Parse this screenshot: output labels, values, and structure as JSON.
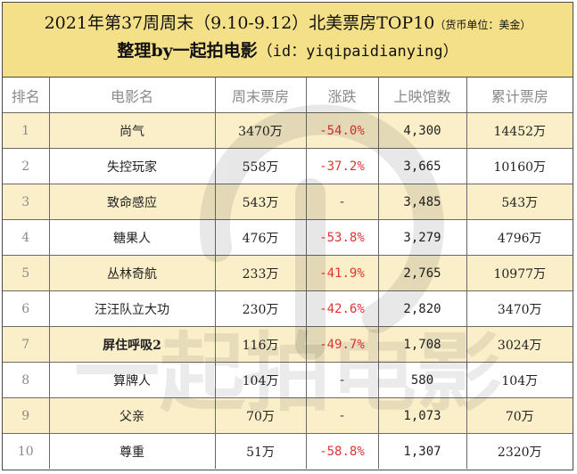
{
  "header": {
    "title": "2021年第37周周末（9.10-9.12）北美票房TOP10",
    "unit": "（货币单位：美金）",
    "sub_prefix": "整理by一起拍电影",
    "sub_id": "（id：yiqipaidianying）"
  },
  "columns": [
    "排名",
    "电影名",
    "周末票房",
    "涨跌",
    "上映馆数",
    "累计票房"
  ],
  "rows": [
    {
      "rank": "1",
      "title": "尚气",
      "weekend": "3470万",
      "change": "-54.0%",
      "screens": "4,300",
      "total": "14452万"
    },
    {
      "rank": "2",
      "title": "失控玩家",
      "weekend": "558万",
      "change": "-37.2%",
      "screens": "3,665",
      "total": "10160万"
    },
    {
      "rank": "3",
      "title": "致命感应",
      "weekend": "543万",
      "change": "-",
      "screens": "3,485",
      "total": "543万"
    },
    {
      "rank": "4",
      "title": "糖果人",
      "weekend": "476万",
      "change": "-53.8%",
      "screens": "3,279",
      "total": "4796万"
    },
    {
      "rank": "5",
      "title": "丛林奇航",
      "weekend": "233万",
      "change": "-41.9%",
      "screens": "2,765",
      "total": "10977万"
    },
    {
      "rank": "6",
      "title": "汪汪队立大功",
      "weekend": "230万",
      "change": "-42.6%",
      "screens": "2,820",
      "total": "3470万"
    },
    {
      "rank": "7",
      "title": "屏住呼吸2",
      "weekend": "116万",
      "change": "-49.7%",
      "screens": "1,708",
      "total": "3024万"
    },
    {
      "rank": "8",
      "title": "算牌人",
      "weekend": "104万",
      "change": "-",
      "screens": "580",
      "total": "104万"
    },
    {
      "rank": "9",
      "title": "父亲",
      "weekend": "70万",
      "change": "-",
      "screens": "1,073",
      "total": "70万"
    },
    {
      "rank": "10",
      "title": "尊重",
      "weekend": "51万",
      "change": "-58.8%",
      "screens": "1,307",
      "total": "2320万"
    }
  ],
  "watermark": {
    "text": "一起拍电影"
  },
  "colors": {
    "header_bg": "#f5e08a",
    "odd_row_bg": "#faeec4",
    "negative": "#e23333"
  }
}
